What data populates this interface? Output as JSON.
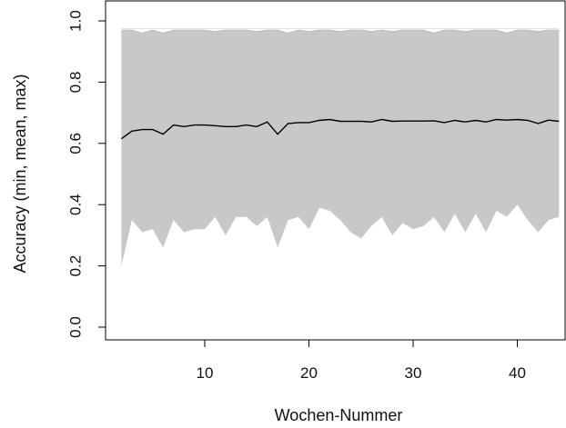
{
  "chart_data": {
    "type": "area",
    "title": "",
    "xlabel": "Wochen-Nummer",
    "ylabel": "Accuracy (min, mean, max)",
    "xlim": [
      0,
      46
    ],
    "ylim": [
      0.0,
      1.0
    ],
    "x_ticks": [
      10,
      20,
      30,
      40
    ],
    "y_ticks": [
      0.0,
      0.2,
      0.4,
      0.6,
      0.8,
      1.0
    ],
    "x_tick_labels": [
      "10",
      "20",
      "30",
      "40"
    ],
    "y_tick_labels": [
      "0.0",
      "0.2",
      "0.4",
      "0.6",
      "0.8",
      "1.0"
    ],
    "x": [
      2,
      3,
      4,
      5,
      6,
      7,
      8,
      9,
      10,
      11,
      12,
      13,
      14,
      15,
      16,
      17,
      18,
      19,
      20,
      21,
      22,
      23,
      24,
      25,
      26,
      27,
      28,
      29,
      30,
      31,
      32,
      33,
      34,
      35,
      36,
      37,
      38,
      39,
      40,
      41,
      42,
      43,
      44
    ],
    "series": [
      {
        "role": "min",
        "values": [
          0.2,
          0.35,
          0.31,
          0.32,
          0.26,
          0.35,
          0.31,
          0.32,
          0.32,
          0.36,
          0.3,
          0.36,
          0.36,
          0.33,
          0.36,
          0.26,
          0.35,
          0.36,
          0.32,
          0.39,
          0.38,
          0.35,
          0.31,
          0.29,
          0.33,
          0.36,
          0.3,
          0.34,
          0.32,
          0.33,
          0.36,
          0.31,
          0.37,
          0.31,
          0.37,
          0.31,
          0.38,
          0.36,
          0.4,
          0.35,
          0.31,
          0.35,
          0.36
        ],
        "color": "#c8c8c8"
      },
      {
        "role": "mean",
        "values": [
          0.615,
          0.64,
          0.645,
          0.645,
          0.63,
          0.66,
          0.655,
          0.66,
          0.66,
          0.658,
          0.655,
          0.655,
          0.66,
          0.655,
          0.67,
          0.63,
          0.665,
          0.668,
          0.668,
          0.675,
          0.678,
          0.672,
          0.672,
          0.672,
          0.67,
          0.678,
          0.672,
          0.673,
          0.673,
          0.673,
          0.674,
          0.668,
          0.675,
          0.67,
          0.675,
          0.67,
          0.678,
          0.676,
          0.678,
          0.675,
          0.665,
          0.676,
          0.672
        ],
        "color": "#000000"
      },
      {
        "role": "max",
        "values": [
          0.97,
          0.97,
          0.96,
          0.97,
          0.96,
          0.97,
          0.97,
          0.97,
          0.97,
          0.965,
          0.97,
          0.97,
          0.97,
          0.965,
          0.97,
          0.97,
          0.96,
          0.97,
          0.965,
          0.97,
          0.97,
          0.965,
          0.97,
          0.97,
          0.965,
          0.97,
          0.965,
          0.97,
          0.97,
          0.97,
          0.96,
          0.97,
          0.97,
          0.965,
          0.97,
          0.97,
          0.97,
          0.96,
          0.97,
          0.97,
          0.965,
          0.97,
          0.97
        ],
        "color": "#c8c8c8"
      }
    ],
    "reference_line": {
      "y": 0.975,
      "color": "#dddddd"
    },
    "grid": false,
    "colors": {
      "band": "#c8c8c8",
      "mean_line": "#000000",
      "axis": "#000000"
    }
  }
}
